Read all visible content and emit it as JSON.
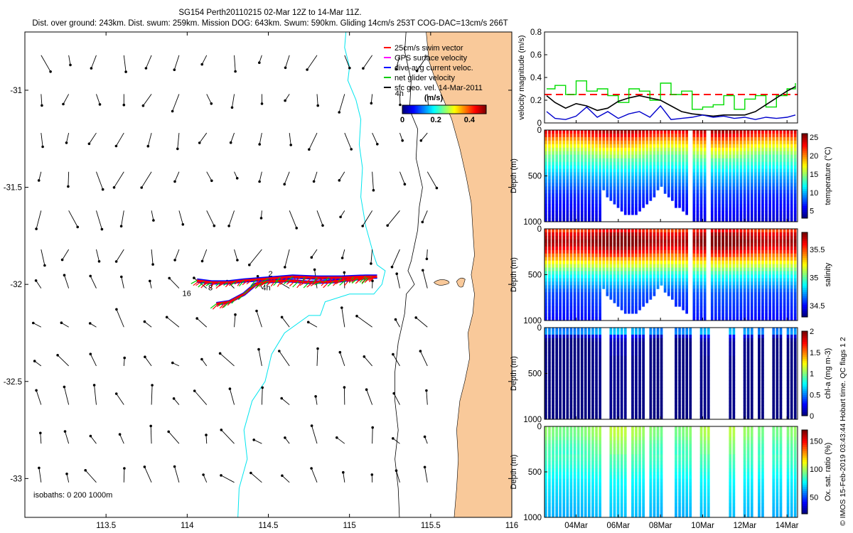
{
  "header": {
    "line1": "SG154 Perth20110215 02-Mar 12Z to 14-Mar 11Z.",
    "line2": "Dist. over ground: 243km. Dist. swum: 259km. Mission DOG: 643km. Swum: 590km. Gliding 14cm/s 253T COG-DAC=13cm/s 266T"
  },
  "side_label": "© IMOS 15-Feb-2019 03:43:44 Hobart time. QC flags 1  2",
  "colors": {
    "land": "#F9C99A",
    "isobath": "#00E5EE",
    "swim": "#FF0000",
    "gps": "#FF00FF",
    "dac": "#0000FF",
    "net": "#00CC00"
  },
  "chart_data": [
    {
      "type": "map",
      "xlim": [
        113.0,
        116.0
      ],
      "ylim": [
        -33.2,
        -30.7
      ],
      "x_ticks": [
        113.5,
        114,
        114.5,
        115,
        115.5,
        116
      ],
      "x_tick_labels": [
        "113.5",
        "114",
        "114.5",
        "115",
        "115.5",
        "116"
      ],
      "y_ticks": [
        -31,
        -31.5,
        -32,
        -32.5,
        -33
      ],
      "y_tick_labels": [
        "-31",
        "-31.5",
        "-32",
        "-32.5",
        "-33"
      ],
      "legend": [
        {
          "label": "25cm/s swim vector",
          "color": "#FF0000"
        },
        {
          "label": "GPS surface velocity",
          "color": "#FF00FF"
        },
        {
          "label": "dive-avg current veloc.",
          "color": "#0000FF"
        },
        {
          "label": "net glider velocity",
          "color": "#00CC00"
        },
        {
          "label": "sfc geo. vel. 14-Mar-2011",
          "color": "#000000"
        }
      ],
      "colorbar": {
        "title": "(m/s)",
        "min": 0,
        "max": 0.5,
        "tick_labels": [
          "0",
          "0.2",
          "0.4"
        ],
        "tick_values": [
          0,
          0.2,
          0.4
        ]
      },
      "isobaths_label": "isobaths: 0   200   1000m",
      "track_labels": [
        "16",
        "8",
        "4h",
        "2"
      ],
      "track_west": [
        [
          114.06,
          -31.98
        ],
        [
          114.15,
          -31.99
        ],
        [
          114.25,
          -31.99
        ],
        [
          114.35,
          -31.98
        ],
        [
          114.5,
          -31.97
        ],
        [
          114.65,
          -31.96
        ],
        [
          114.8,
          -31.965
        ],
        [
          114.95,
          -31.965
        ],
        [
          115.1,
          -31.96
        ],
        [
          115.17,
          -31.96
        ]
      ],
      "track_east": [
        [
          114.18,
          -32.1
        ],
        [
          114.26,
          -32.09
        ],
        [
          114.35,
          -32.05
        ],
        [
          114.42,
          -32.0
        ],
        [
          114.5,
          -31.985
        ],
        [
          114.62,
          -31.98
        ],
        [
          114.75,
          -31.99
        ],
        [
          114.9,
          -31.985
        ],
        [
          115.05,
          -31.97
        ],
        [
          115.17,
          -31.96
        ]
      ]
    },
    {
      "type": "line",
      "ylabel": "velocity magnitude (m/s)",
      "ylim": [
        0,
        0.8
      ],
      "y_ticks": [
        0,
        0.2,
        0.4,
        0.6,
        0.8
      ],
      "y_tick_labels": [
        "0",
        "0.2",
        "0.4",
        "0.6",
        "0.8"
      ],
      "x_day_range": [
        2.5,
        14.5
      ],
      "reference_line": 0.25,
      "series": [
        {
          "color": "#00DD00",
          "day": [
            2.6,
            3.0,
            3.5,
            4.0,
            4.5,
            5.0,
            5.5,
            6.0,
            6.5,
            7.0,
            7.5,
            8.0,
            8.5,
            9.0,
            9.5,
            10.0,
            10.5,
            11.0,
            11.5,
            12.0,
            12.5,
            13.0,
            13.5,
            14.0,
            14.4
          ],
          "values": [
            0.3,
            0.33,
            0.25,
            0.37,
            0.28,
            0.3,
            0.24,
            0.18,
            0.3,
            0.28,
            0.2,
            0.35,
            0.25,
            0.28,
            0.12,
            0.14,
            0.16,
            0.24,
            0.12,
            0.21,
            0.24,
            0.14,
            0.24,
            0.3,
            0.35
          ]
        },
        {
          "color": "#000000",
          "day": [
            2.6,
            3.0,
            3.5,
            4.0,
            4.5,
            5.0,
            5.5,
            6.0,
            6.5,
            7.0,
            7.5,
            8.0,
            8.5,
            9.0,
            9.5,
            10.0,
            10.5,
            11.0,
            11.5,
            12.0,
            12.5,
            13.0,
            13.5,
            14.0,
            14.4
          ],
          "values": [
            0.24,
            0.18,
            0.13,
            0.17,
            0.15,
            0.11,
            0.13,
            0.19,
            0.22,
            0.24,
            0.22,
            0.2,
            0.15,
            0.1,
            0.08,
            0.07,
            0.06,
            0.07,
            0.07,
            0.07,
            0.1,
            0.16,
            0.22,
            0.28,
            0.32
          ]
        },
        {
          "color": "#0000CC",
          "day": [
            2.6,
            3.0,
            3.5,
            4.0,
            4.5,
            5.0,
            5.5,
            6.0,
            6.5,
            7.0,
            7.5,
            8.0,
            8.5,
            9.0,
            9.5,
            10.0,
            10.5,
            11.0,
            11.5,
            12.0,
            12.5,
            13.0,
            13.5,
            14.0,
            14.4
          ],
          "values": [
            0.1,
            0.04,
            0.03,
            0.06,
            0.14,
            0.05,
            0.1,
            0.04,
            0.08,
            0.1,
            0.05,
            0.15,
            0.03,
            0.04,
            0.05,
            0.07,
            0.05,
            0.06,
            0.04,
            0.05,
            0.03,
            0.05,
            0.04,
            0.05,
            0.07
          ]
        }
      ]
    },
    {
      "type": "heatmap",
      "ylabel": "Depth (m)",
      "y_range": [
        0,
        1000
      ],
      "y_tick_labels": [
        "0",
        "500",
        "1000"
      ],
      "cbar_label": "temperature (°C)",
      "clim": [
        3,
        26
      ],
      "cbar_ticks": [
        5,
        10,
        15,
        20,
        25
      ],
      "cbar_tick_labels": [
        "5",
        "10",
        "15",
        "20",
        "25"
      ],
      "profile": {
        "depth": [
          0,
          50,
          100,
          200,
          300,
          500,
          700,
          1000
        ],
        "values": [
          24.5,
          23,
          20.5,
          17,
          14,
          10,
          7,
          5
        ]
      }
    },
    {
      "type": "heatmap",
      "ylabel": "Depth (m)",
      "y_range": [
        0,
        1000
      ],
      "y_tick_labels": [
        "0",
        "500",
        "1000"
      ],
      "cbar_label": "salinity",
      "clim": [
        34.3,
        35.8
      ],
      "cbar_ticks": [
        34.5,
        35,
        35.5
      ],
      "cbar_tick_labels": [
        "34.5",
        "35",
        "35.5"
      ],
      "profile": {
        "depth": [
          0,
          60,
          150,
          250,
          350,
          500,
          700,
          1000
        ],
        "values": [
          35.5,
          35.7,
          35.8,
          35.6,
          35.3,
          34.9,
          34.6,
          34.5
        ]
      }
    },
    {
      "type": "heatmap",
      "ylabel": "Depth (m)",
      "y_range": [
        0,
        1000
      ],
      "y_tick_labels": [
        "0",
        "500",
        "1000"
      ],
      "cbar_label": "chl-a (mg m-3)",
      "clim": [
        0,
        2
      ],
      "cbar_ticks": [
        0,
        0.5,
        1,
        1.5,
        2
      ],
      "cbar_tick_labels": [
        "0",
        "0.5",
        "1",
        "1.5",
        "2"
      ],
      "profile": {
        "depth": [
          0,
          40,
          70,
          100,
          150,
          1000
        ],
        "values": [
          0.4,
          0.7,
          0.5,
          0.15,
          0.02,
          0.0
        ]
      }
    },
    {
      "type": "heatmap",
      "ylabel": "Depth (m)",
      "y_range": [
        0,
        1000
      ],
      "y_tick_labels": [
        "0",
        "500",
        "1000"
      ],
      "cbar_label": "Ox. sat. ratio (%)",
      "clim": [
        20,
        170
      ],
      "cbar_ticks": [
        50,
        100,
        150
      ],
      "cbar_tick_labels": [
        "50",
        "100",
        "150"
      ],
      "profile": {
        "depth": [
          0,
          100,
          200,
          400,
          600,
          800,
          1000
        ],
        "values": [
          100,
          98,
          92,
          85,
          75,
          70,
          65
        ]
      },
      "x_tick_labels": [
        "04Mar",
        "06Mar",
        "08Mar",
        "10Mar",
        "12Mar",
        "14Mar"
      ],
      "x_tick_days": [
        4,
        6,
        8,
        10,
        12,
        14
      ]
    }
  ]
}
